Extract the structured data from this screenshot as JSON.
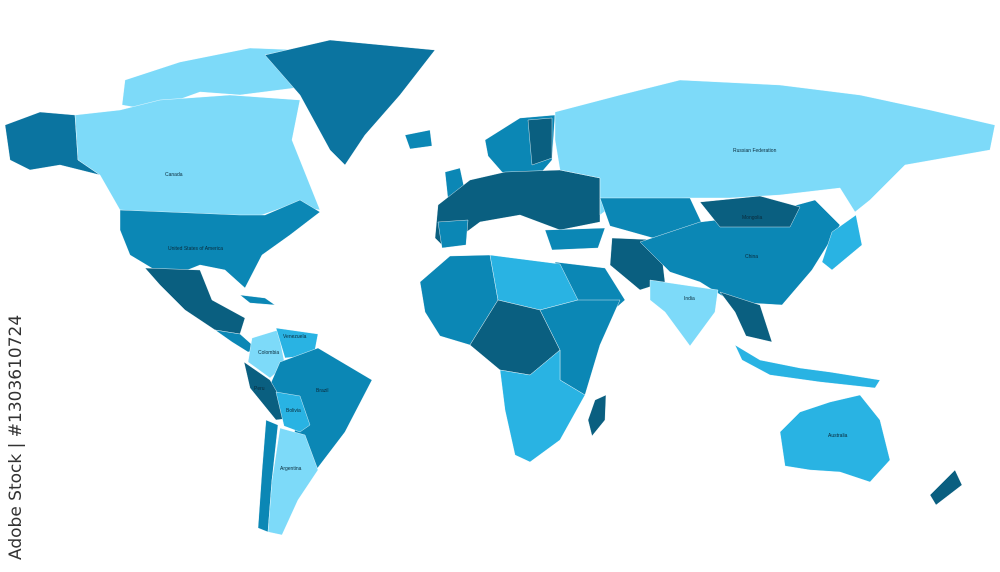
{
  "colors": {
    "light": "#7ddaf9",
    "cyan": "#29b3e3",
    "mid": "#0b87b5",
    "dark": "#0a5f80",
    "medium_dark": "#0b74a0"
  },
  "labels": {
    "canada": "Canada",
    "usa": "United States of America",
    "russia": "Russian Federation",
    "china": "China",
    "mongolia": "Mongolia",
    "india": "India",
    "brazil": "Brazil",
    "argentina": "Argentina",
    "colombia": "Colombia",
    "venezuela": "Venezuela",
    "peru": "Peru",
    "bolivia": "Bolivia",
    "australia": "Australia"
  },
  "watermark": {
    "text": "Adobe Stock | #1303610724"
  }
}
